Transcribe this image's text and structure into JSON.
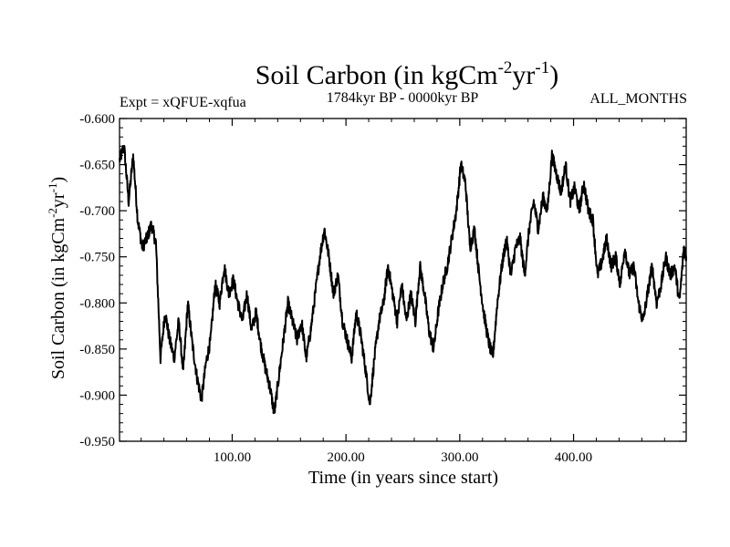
{
  "chart_data": {
    "type": "line",
    "title": {
      "prefix": "Soil Carbon (in kgCm",
      "sup1": "-2",
      "mid": "yr",
      "sup2": "-1",
      "suffix": ")"
    },
    "subtitle_left": "Expt = xQFUE-xqfua",
    "subtitle_center": "1784kyr BP - 0000kyr BP",
    "subtitle_right": "ALL_MONTHS",
    "xlabel": "Time (in years since start)",
    "ylabel": {
      "prefix": "Soil Carbon (in kgCm",
      "sup1": "-2",
      "mid": "yr",
      "sup2": "-1",
      "suffix": ")"
    },
    "xlim": [
      1,
      499
    ],
    "ylim": [
      -0.95,
      -0.6
    ],
    "x_ticks": [
      100,
      200,
      300,
      400
    ],
    "x_tick_labels": [
      "100.00",
      "200.00",
      "300.00",
      "400.00"
    ],
    "y_ticks": [
      -0.6,
      -0.65,
      -0.7,
      -0.75,
      -0.8,
      -0.85,
      -0.9,
      -0.95
    ],
    "y_tick_labels": [
      "-0.600",
      "-0.650",
      "-0.700",
      "-0.750",
      "-0.800",
      "-0.850",
      "-0.900",
      "-0.950"
    ],
    "series": [
      {
        "name": "Soil Carbon",
        "color": "#000000",
        "x": [
          1,
          5,
          9,
          13,
          17,
          21,
          25,
          29,
          33,
          37,
          41,
          45,
          49,
          53,
          57,
          61,
          65,
          69,
          73,
          77,
          81,
          85,
          89,
          93,
          97,
          101,
          105,
          109,
          113,
          117,
          121,
          125,
          129,
          133,
          137,
          141,
          145,
          149,
          153,
          157,
          161,
          165,
          169,
          173,
          177,
          181,
          185,
          189,
          193,
          197,
          201,
          205,
          209,
          213,
          217,
          221,
          225,
          229,
          233,
          237,
          241,
          245,
          249,
          253,
          257,
          261,
          265,
          269,
          273,
          277,
          281,
          285,
          289,
          293,
          297,
          301,
          305,
          309,
          313,
          317,
          321,
          325,
          329,
          333,
          337,
          341,
          345,
          349,
          353,
          357,
          361,
          365,
          369,
          373,
          377,
          381,
          385,
          389,
          393,
          397,
          401,
          405,
          409,
          413,
          417,
          421,
          425,
          429,
          433,
          437,
          441,
          445,
          449,
          453,
          457,
          461,
          465,
          469,
          473,
          477,
          481,
          485,
          489,
          493,
          497,
          499
        ],
        "values": [
          -0.645,
          -0.63,
          -0.69,
          -0.64,
          -0.71,
          -0.74,
          -0.73,
          -0.715,
          -0.735,
          -0.86,
          -0.81,
          -0.84,
          -0.86,
          -0.82,
          -0.875,
          -0.8,
          -0.845,
          -0.88,
          -0.905,
          -0.865,
          -0.84,
          -0.78,
          -0.8,
          -0.76,
          -0.79,
          -0.775,
          -0.8,
          -0.82,
          -0.79,
          -0.83,
          -0.81,
          -0.845,
          -0.87,
          -0.89,
          -0.92,
          -0.88,
          -0.84,
          -0.8,
          -0.82,
          -0.84,
          -0.82,
          -0.86,
          -0.83,
          -0.79,
          -0.75,
          -0.72,
          -0.75,
          -0.79,
          -0.77,
          -0.82,
          -0.84,
          -0.86,
          -0.81,
          -0.835,
          -0.87,
          -0.91,
          -0.86,
          -0.82,
          -0.8,
          -0.76,
          -0.79,
          -0.82,
          -0.78,
          -0.82,
          -0.79,
          -0.82,
          -0.76,
          -0.79,
          -0.83,
          -0.85,
          -0.81,
          -0.78,
          -0.76,
          -0.73,
          -0.7,
          -0.65,
          -0.67,
          -0.74,
          -0.72,
          -0.77,
          -0.81,
          -0.84,
          -0.86,
          -0.8,
          -0.76,
          -0.73,
          -0.77,
          -0.74,
          -0.73,
          -0.77,
          -0.72,
          -0.69,
          -0.72,
          -0.685,
          -0.7,
          -0.64,
          -0.66,
          -0.68,
          -0.65,
          -0.69,
          -0.675,
          -0.7,
          -0.67,
          -0.7,
          -0.71,
          -0.77,
          -0.755,
          -0.73,
          -0.76,
          -0.75,
          -0.78,
          -0.74,
          -0.77,
          -0.76,
          -0.8,
          -0.82,
          -0.79,
          -0.76,
          -0.8,
          -0.78,
          -0.75,
          -0.77,
          -0.76,
          -0.8,
          -0.74,
          -0.75
        ]
      }
    ]
  }
}
